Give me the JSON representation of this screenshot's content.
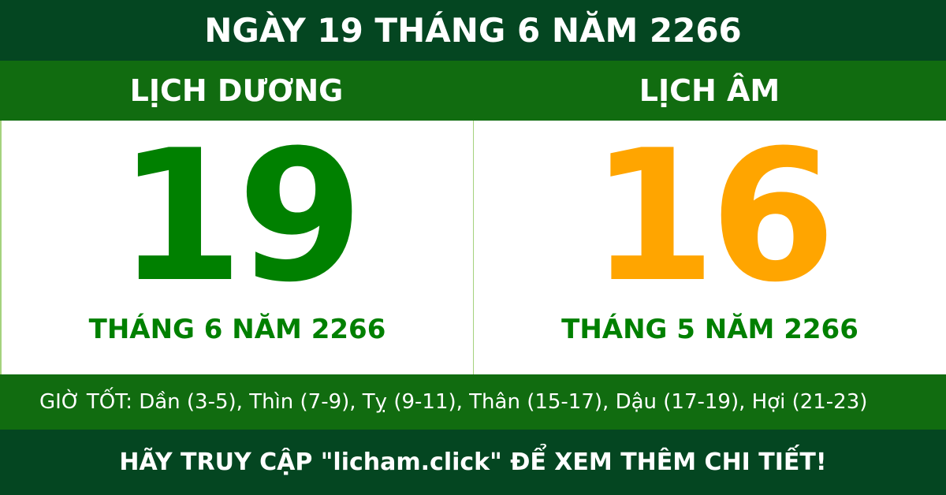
{
  "title": "NGÀY 19 THÁNG 6 NĂM 2266",
  "solar": {
    "heading": "LỊCH DƯƠNG",
    "day": "19",
    "month_year": "THÁNG 6 NĂM 2266"
  },
  "lunar": {
    "heading": "LỊCH ÂM",
    "day": "16",
    "month_year": "THÁNG 5 NĂM 2266"
  },
  "good_hours": "GIỜ TỐT: Dần (3-5), Thìn (7-9), Tỵ (9-11), Thân (15-17), Dậu (17-19), Hợi (21-23)",
  "footer": "HÃY TRUY CẬP \"licham.click\" ĐỂ XEM THÊM CHI TIẾT!",
  "colors": {
    "dark_green": "#044621",
    "green": "#116c10",
    "solar_number": "#008000",
    "lunar_number": "#ffa500"
  }
}
